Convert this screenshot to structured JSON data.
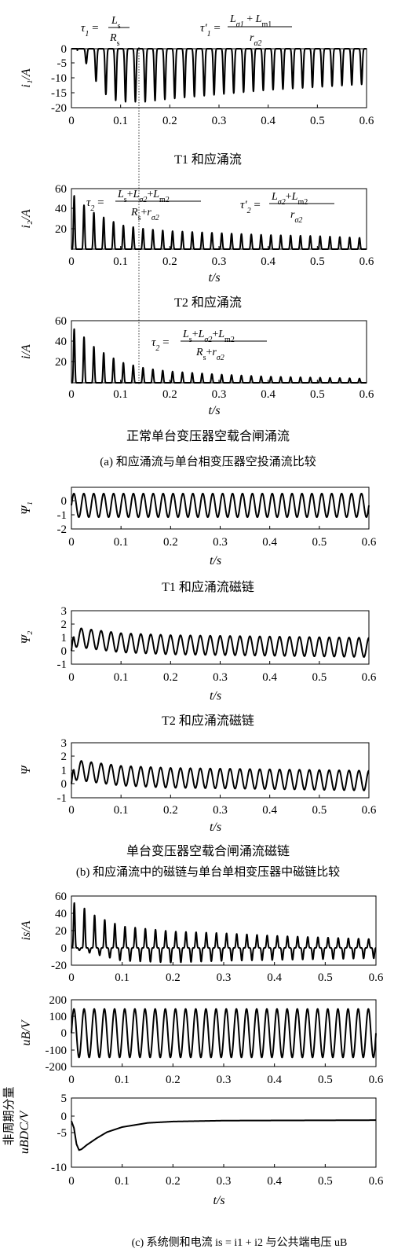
{
  "chart_data": [
    {
      "type": "line",
      "id": "i1",
      "ylabel": "i₁/A",
      "yticks": [
        "0",
        "-5",
        "-10",
        "-15",
        "-20"
      ],
      "ylim": [
        -20,
        0
      ],
      "xlim": [
        0,
        0.6
      ],
      "xticks": [
        "0",
        "0.1",
        "0.2",
        "0.3",
        "0.4",
        "0.5",
        "0.6"
      ],
      "xlabel": "",
      "caption": "T1 和应涌流",
      "annotations": [
        "τ₁ = Ls / Rs",
        "τ′₁ = (Lσ1 + Lm1) / rσ2"
      ],
      "series": [
        {
          "frequency_hz": 50,
          "peak_envelope": [
            [
              0.0,
              0
            ],
            [
              0.02,
              -2
            ],
            [
              0.04,
              -8
            ],
            [
              0.06,
              -14
            ],
            [
              0.08,
              -17
            ],
            [
              0.1,
              -18
            ],
            [
              0.15,
              -18
            ],
            [
              0.2,
              -17
            ],
            [
              0.3,
              -15.5
            ],
            [
              0.4,
              -14
            ],
            [
              0.5,
              -13
            ],
            [
              0.6,
              -12
            ]
          ]
        }
      ]
    },
    {
      "type": "line",
      "id": "i2",
      "ylabel": "i₂/A",
      "yticks": [
        "60",
        "40",
        "20"
      ],
      "ylim": [
        0,
        60
      ],
      "xlim": [
        0,
        0.6
      ],
      "xticks": [
        "0",
        "0.1",
        "0.2",
        "0.3",
        "0.4",
        "0.5",
        "0.6"
      ],
      "xlabel": "t/s",
      "caption": "T2 和应涌流",
      "annotations": [
        "τ₂ = (Ls + Lσ2 + Lm2) / (Rs + rσ2)",
        "τ′₂ = (Lσ2 + Lm2) / rσ2"
      ],
      "series": [
        {
          "frequency_hz": 50,
          "peak_envelope": [
            [
              0.01,
              53
            ],
            [
              0.03,
              41
            ],
            [
              0.05,
              35
            ],
            [
              0.1,
              24
            ],
            [
              0.15,
              20
            ],
            [
              0.2,
              18
            ],
            [
              0.3,
              16
            ],
            [
              0.4,
              14
            ],
            [
              0.5,
              13
            ],
            [
              0.6,
              11
            ]
          ]
        }
      ]
    },
    {
      "type": "line",
      "id": "i",
      "ylabel": "i/A",
      "yticks": [
        "60",
        "40",
        "20"
      ],
      "ylim": [
        0,
        60
      ],
      "xlim": [
        0,
        0.6
      ],
      "xticks": [
        "0",
        "0.1",
        "0.2",
        "0.3",
        "0.4",
        "0.5",
        "0.6"
      ],
      "xlabel": "t/s",
      "caption": "正常单台变压器空载合闸涌流",
      "annotations": [
        "τ₂ = (Ls + Lσ2 + Lm2) / (Rs + rσ2)"
      ],
      "series": [
        {
          "frequency_hz": 50,
          "peak_envelope": [
            [
              0.01,
              52
            ],
            [
              0.03,
              42
            ],
            [
              0.05,
              33
            ],
            [
              0.1,
              20
            ],
            [
              0.15,
              14
            ],
            [
              0.2,
              11
            ],
            [
              0.3,
              8
            ],
            [
              0.4,
              6
            ],
            [
              0.5,
              5
            ],
            [
              0.6,
              4
            ]
          ]
        }
      ]
    },
    {
      "type": "line",
      "id": "psi1",
      "ylabel": "Ψ₁",
      "yticks": [
        "0",
        "-1",
        "-2"
      ],
      "ylim": [
        -2,
        1
      ],
      "xlim": [
        0,
        0.6
      ],
      "xticks": [
        "0",
        "0.1",
        "0.2",
        "0.3",
        "0.4",
        "0.5",
        "0.6"
      ],
      "xlabel": "t/s",
      "caption": "T1 和应涌流磁链",
      "series": [
        {
          "frequency_hz": 50,
          "max": 0.55,
          "min": -1.15
        }
      ]
    },
    {
      "type": "line",
      "id": "psi2",
      "ylabel": "Ψ₂",
      "yticks": [
        "3",
        "2",
        "1",
        "0",
        "-1"
      ],
      "ylim": [
        -1,
        3
      ],
      "xlim": [
        0,
        0.6
      ],
      "xticks": [
        "0",
        "0.1",
        "0.2",
        "0.3",
        "0.4",
        "0.5",
        "0.6"
      ],
      "xlabel": "t/s",
      "caption": "T2 和应涌流磁链",
      "series": [
        {
          "frequency_hz": 50,
          "dc_envelope": [
            [
              0,
              1.05
            ],
            [
              0.1,
              0.6
            ],
            [
              0.2,
              0.45
            ],
            [
              0.6,
              0.25
            ]
          ],
          "amplitude": 0.72
        }
      ]
    },
    {
      "type": "line",
      "id": "psi",
      "ylabel": "Ψ",
      "yticks": [
        "3",
        "2",
        "1",
        "0",
        "-1"
      ],
      "ylim": [
        -1,
        3
      ],
      "xlim": [
        0,
        0.6
      ],
      "xticks": [
        "0",
        "0.1",
        "0.2",
        "0.3",
        "0.4",
        "0.5",
        "0.6"
      ],
      "xlabel": "t/s",
      "caption": "单台变压器空载合闸涌流磁链",
      "series": [
        {
          "frequency_hz": 50,
          "dc_envelope": [
            [
              0,
              1.05
            ],
            [
              0.1,
              0.6
            ],
            [
              0.2,
              0.45
            ],
            [
              0.6,
              0.25
            ]
          ],
          "amplitude": 0.72
        }
      ]
    },
    {
      "type": "line",
      "id": "is",
      "ylabel": "is/A",
      "yticks": [
        "60",
        "40",
        "20",
        "0",
        "-20"
      ],
      "ylim": [
        -20,
        60
      ],
      "xlim": [
        0,
        0.6
      ],
      "xticks": [
        "0",
        "0.1",
        "0.2",
        "0.3",
        "0.4",
        "0.5",
        "0.6"
      ],
      "xlabel": "",
      "series": [
        {
          "frequency_hz": 50,
          "peak_envelope": [
            [
              0.01,
              52
            ],
            [
              0.05,
              36
            ],
            [
              0.1,
              25
            ],
            [
              0.2,
              19
            ],
            [
              0.3,
              17
            ],
            [
              0.4,
              14
            ],
            [
              0.5,
              12
            ],
            [
              0.6,
              10
            ]
          ],
          "trough_envelope": [
            [
              0.01,
              -2
            ],
            [
              0.1,
              -15
            ],
            [
              0.2,
              -17
            ],
            [
              0.3,
              -15
            ],
            [
              0.4,
              -14
            ],
            [
              0.5,
              -13
            ],
            [
              0.6,
              -12
            ]
          ]
        }
      ]
    },
    {
      "type": "line",
      "id": "uB",
      "ylabel": "uB/V",
      "yticks": [
        "200",
        "100",
        "0",
        "-100",
        "-200"
      ],
      "ylim": [
        -200,
        200
      ],
      "xlim": [
        0,
        0.6
      ],
      "xticks": [
        "0",
        "0.1",
        "0.2",
        "0.3",
        "0.4",
        "0.5",
        "0.6"
      ],
      "xlabel": "",
      "series": [
        {
          "frequency_hz": 50,
          "amplitude": 145
        }
      ]
    },
    {
      "type": "line",
      "id": "uBDC",
      "ylabel": "uBDC/V",
      "ylabel_top": "非周期分量",
      "yticks": [
        "5",
        "0",
        "-5",
        "-10"
      ],
      "ylim": [
        -10,
        5
      ],
      "xlim": [
        0,
        0.6
      ],
      "xticks": [
        "0",
        "0.1",
        "0.2",
        "0.3",
        "0.4",
        "0.5",
        "0.6"
      ],
      "xlabel": "t/s",
      "series": [
        {
          "points": [
            [
              0,
              0
            ],
            [
              0.005,
              -1.5
            ],
            [
              0.01,
              -5
            ],
            [
              0.015,
              -6.3
            ],
            [
              0.02,
              -6.1
            ],
            [
              0.03,
              -5.2
            ],
            [
              0.05,
              -3.7
            ],
            [
              0.07,
              -2.4
            ],
            [
              0.1,
              -1.3
            ],
            [
              0.15,
              -0.4
            ],
            [
              0.2,
              -0.1
            ],
            [
              0.3,
              0.1
            ],
            [
              0.6,
              0.2
            ]
          ]
        }
      ]
    }
  ],
  "captions": {
    "a": "(a) 和应涌流与单台相变压器空投涌流比较",
    "b": "(b) 和应涌流中的磁链与单台单相变压器中磁链比较",
    "c": "(c) 系统侧和电流 is = i1 + i2 与公共端电压 uB"
  }
}
